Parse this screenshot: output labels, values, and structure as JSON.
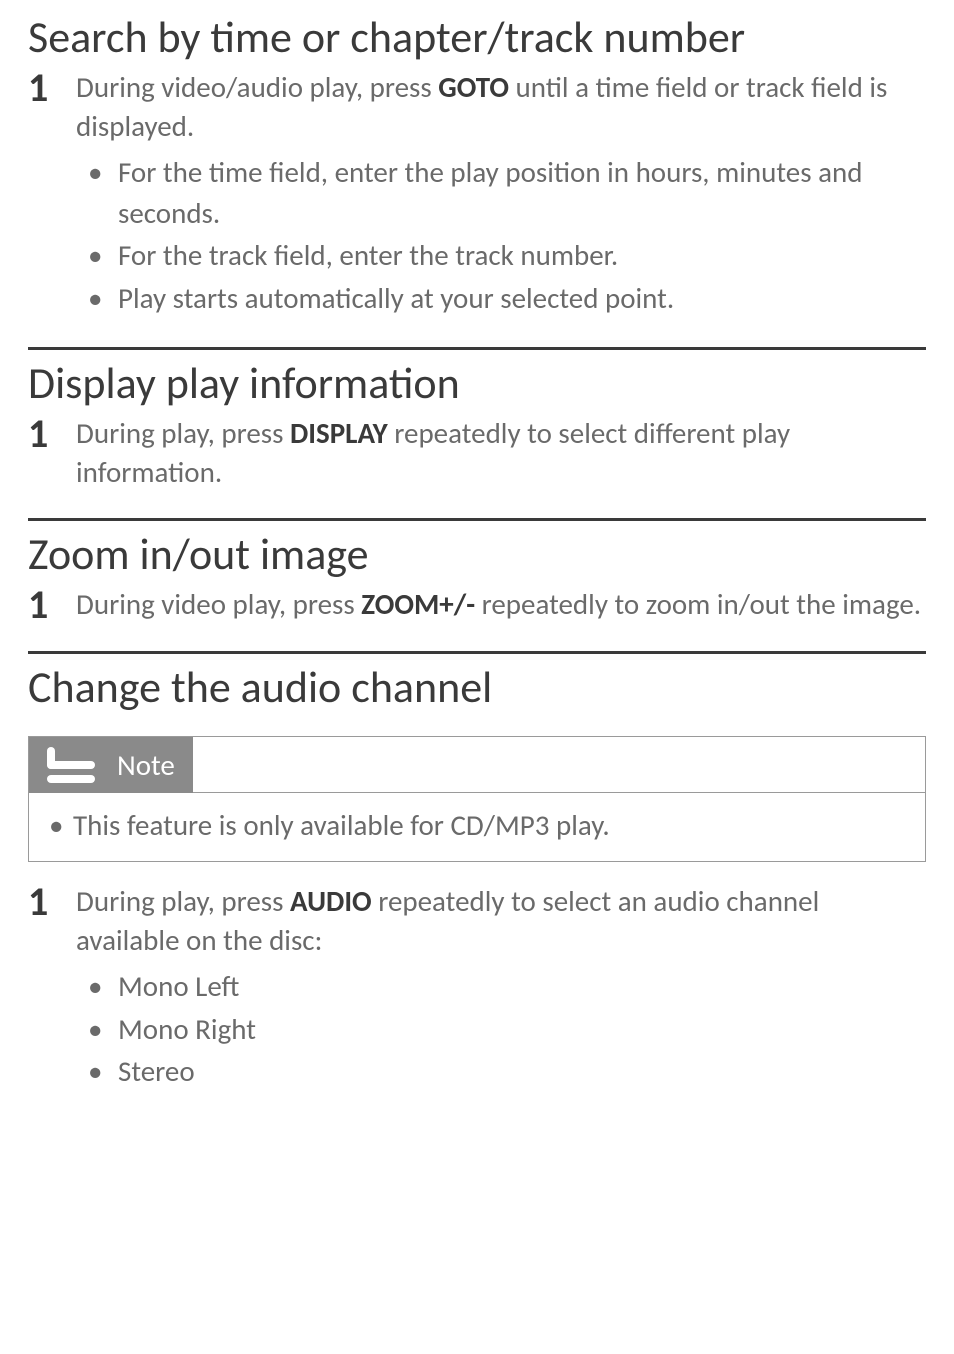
{
  "sections": {
    "search": {
      "title": "Search by time or chapter/track number",
      "step_num": "1",
      "text_before": "During video/audio play, press ",
      "keyword": "GOTO",
      "text_after": " until a time field or track field is displayed.",
      "bullets": [
        "For the time field, enter the play position in hours, minutes and seconds.",
        "For the track field, enter the track number.",
        "Play starts automatically at your selected point."
      ]
    },
    "display": {
      "title": "Display play information",
      "step_num": "1",
      "text_before": "During play, press ",
      "keyword": "DISPLAY",
      "text_after": " repeatedly to select different play information."
    },
    "zoom": {
      "title": "Zoom in/out image",
      "step_num": "1",
      "text_before": "During video play, press ",
      "keyword": "ZOOM+/-",
      "text_after": " repeatedly to zoom in/out the image."
    },
    "audio": {
      "title": "Change the audio channel",
      "note_label": "Note",
      "note_text": "This feature is only available for CD/MP3 play.",
      "step_num": "1",
      "text_before": "During play, press ",
      "keyword": "AUDIO",
      "text_after": " repeatedly to select an audio channel available on the disc:",
      "bullets": [
        "Mono Left",
        "Mono Right",
        "Stereo"
      ]
    }
  },
  "styles": {
    "page_bg": "#ffffff",
    "heading_color": "#3a3a3a",
    "body_color": "#6a6a6a",
    "rule_color": "#3a3a3a",
    "note_bg": "#8a8a8a",
    "heading_fontsize": 44,
    "body_fontsize": 29,
    "stepnum_fontsize": 40
  }
}
